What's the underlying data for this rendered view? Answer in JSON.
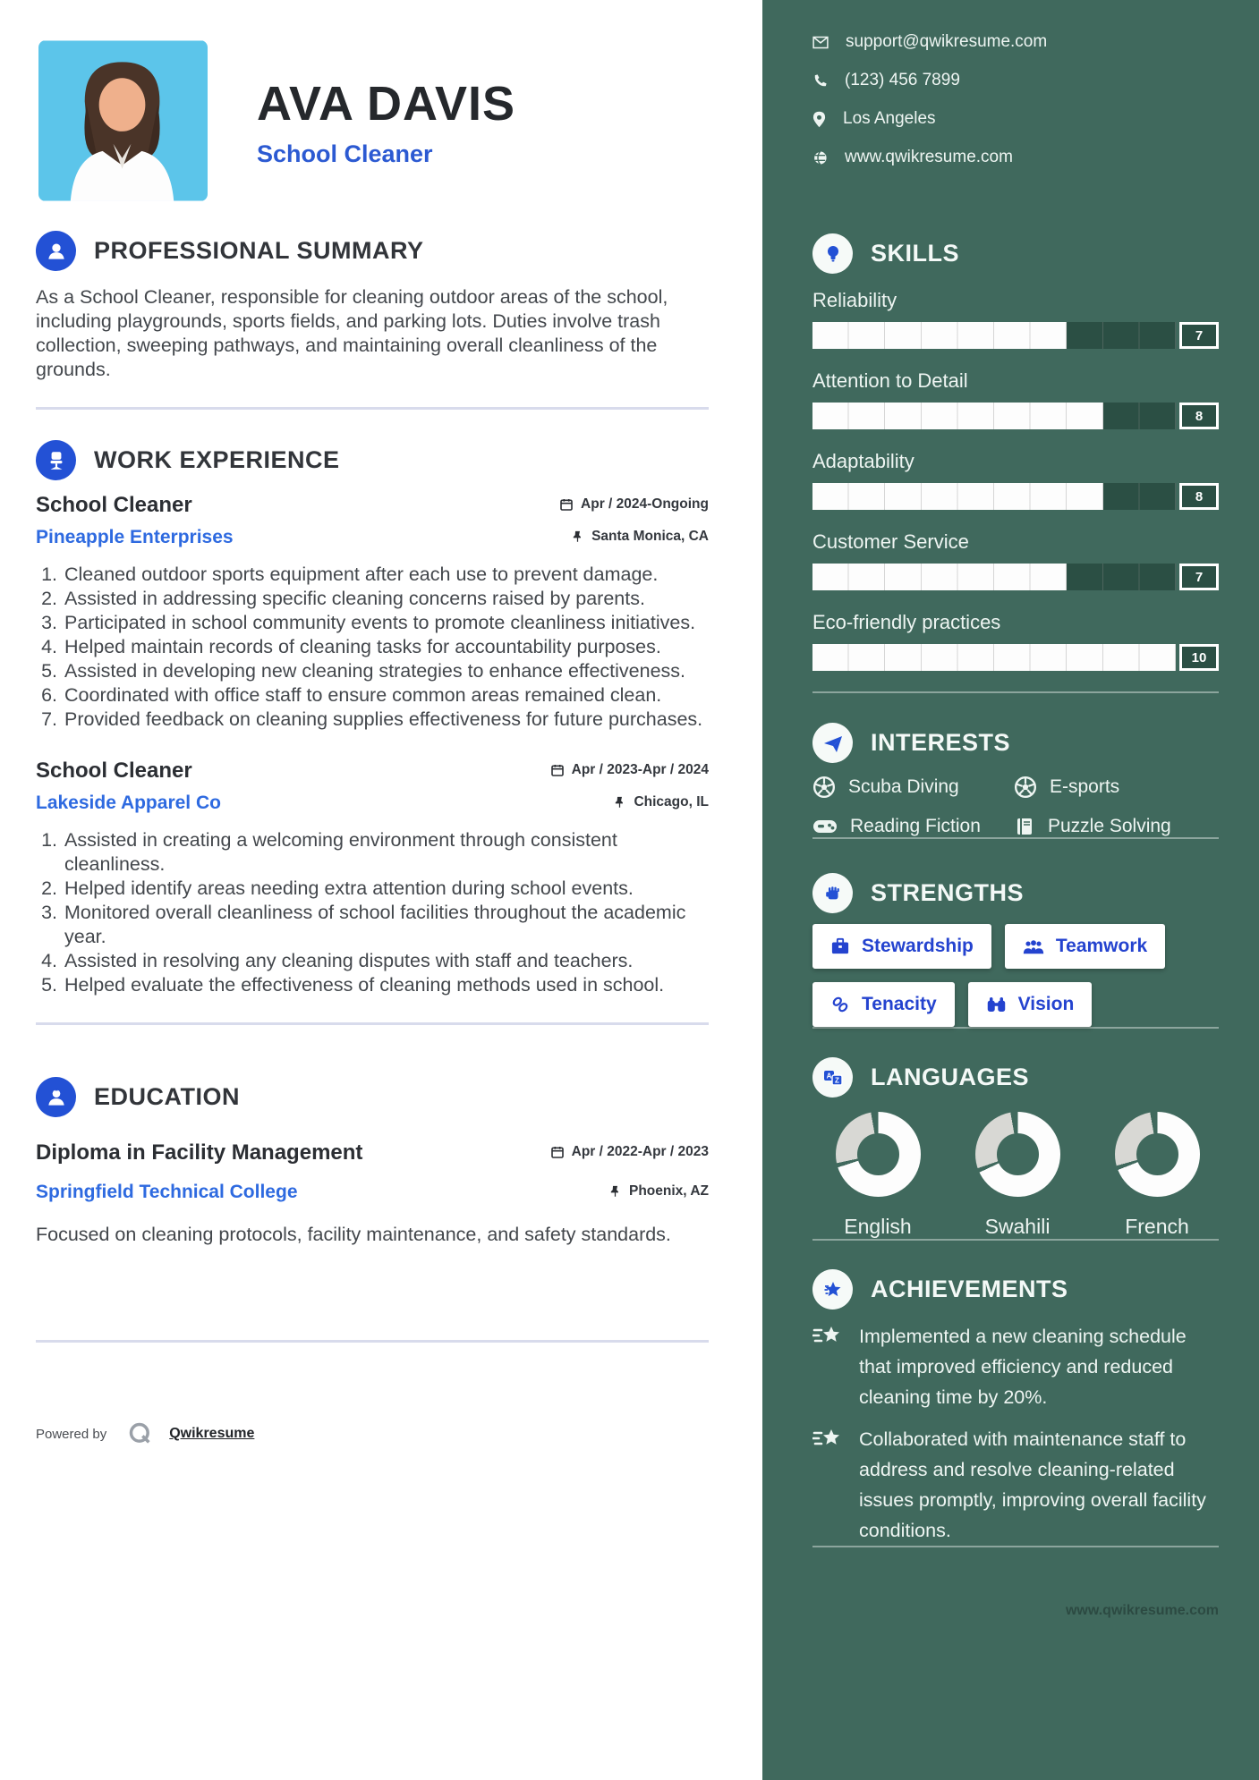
{
  "header": {
    "name": "AVA DAVIS",
    "title": "School Cleaner"
  },
  "contact": {
    "items": [
      {
        "icon": "envelope-icon",
        "text": "support@qwikresume.com"
      },
      {
        "icon": "phone-icon",
        "text": "(123) 456 7899"
      },
      {
        "icon": "location-pin-icon",
        "text": "Los Angeles"
      },
      {
        "icon": "globe-icon",
        "text": "www.qwikresume.com"
      }
    ]
  },
  "summary": {
    "heading": "PROFESSIONAL SUMMARY",
    "text": "As a School Cleaner, responsible for cleaning outdoor areas of the school, including playgrounds, sports fields, and parking lots. Duties involve trash collection, sweeping pathways, and maintaining overall cleanliness of the grounds."
  },
  "work": {
    "heading": "WORK EXPERIENCE",
    "jobs": [
      {
        "title": "School Cleaner",
        "company": "Pineapple Enterprises",
        "date": "Apr / 2024-Ongoing",
        "location": "Santa Monica, CA",
        "bullets": [
          "Cleaned outdoor sports equipment after each use to prevent damage.",
          "Assisted in addressing specific cleaning concerns raised by parents.",
          "Participated in school community events to promote cleanliness initiatives.",
          "Helped maintain records of cleaning tasks for accountability purposes.",
          "Assisted in developing new cleaning strategies to enhance effectiveness.",
          "Coordinated with office staff to ensure common areas remained clean.",
          "Provided feedback on cleaning supplies effectiveness for future purchases."
        ]
      },
      {
        "title": "School Cleaner",
        "company": "Lakeside Apparel Co",
        "date": "Apr / 2023-Apr / 2024",
        "location": "Chicago, IL",
        "bullets": [
          "Assisted in creating a welcoming environment through consistent cleanliness.",
          "Helped identify areas needing extra attention during school events.",
          "Monitored overall cleanliness of school facilities throughout the academic year.",
          "Assisted in resolving any cleaning disputes with staff and teachers.",
          "Helped evaluate the effectiveness of cleaning methods used in school."
        ]
      }
    ]
  },
  "education": {
    "heading": "EDUCATION",
    "degree": "Diploma in Facility Management",
    "school": "Springfield Technical College",
    "date": "Apr / 2022-Apr / 2023",
    "location": "Phoenix, AZ",
    "description": "Focused on cleaning protocols, facility maintenance, and safety standards."
  },
  "skills": {
    "heading": "SKILLS",
    "max": 10,
    "items": [
      {
        "name": "Reliability",
        "value": 7
      },
      {
        "name": "Attention to Detail",
        "value": 8
      },
      {
        "name": "Adaptability",
        "value": 8
      },
      {
        "name": "Customer Service",
        "value": 7
      },
      {
        "name": "Eco-friendly practices",
        "value": 10
      }
    ]
  },
  "interests": {
    "heading": "INTERESTS",
    "items": [
      {
        "icon": "ball-icon",
        "label": "Scuba Diving"
      },
      {
        "icon": "ball-icon",
        "label": "E-sports"
      },
      {
        "icon": "gamepad-icon",
        "label": "Reading Fiction"
      },
      {
        "icon": "book-icon",
        "label": "Puzzle Solving"
      }
    ]
  },
  "strengths": {
    "heading": "STRENGTHS",
    "items": [
      {
        "icon": "briefcase-icon",
        "label": "Stewardship"
      },
      {
        "icon": "team-icon",
        "label": "Teamwork"
      },
      {
        "icon": "chain-icon",
        "label": "Tenacity"
      },
      {
        "icon": "binoculars-icon",
        "label": "Vision"
      }
    ]
  },
  "languages": {
    "heading": "LANGUAGES",
    "items": [
      {
        "label": "English",
        "percent": 70
      },
      {
        "label": "Swahili",
        "percent": 68
      },
      {
        "label": "French",
        "percent": 69
      }
    ]
  },
  "achievements": {
    "heading": "ACHIEVEMENTS",
    "items": [
      "Implemented a new cleaning schedule that improved efficiency and reduced cleaning time by 20%.",
      "Collaborated with maintenance staff to address and resolve cleaning-related issues promptly, improving overall facility conditions."
    ]
  },
  "footer": {
    "powered_by": "Powered by",
    "brand": "Qwikresume",
    "site": "www.qwikresume.com"
  },
  "colors": {
    "sidebar_green": "#40695d",
    "bar_dark": "#2b4f44",
    "accent_blue": "#2351d5",
    "link_blue": "#2e6ae0",
    "donut_gray": "#d8d8d4"
  }
}
